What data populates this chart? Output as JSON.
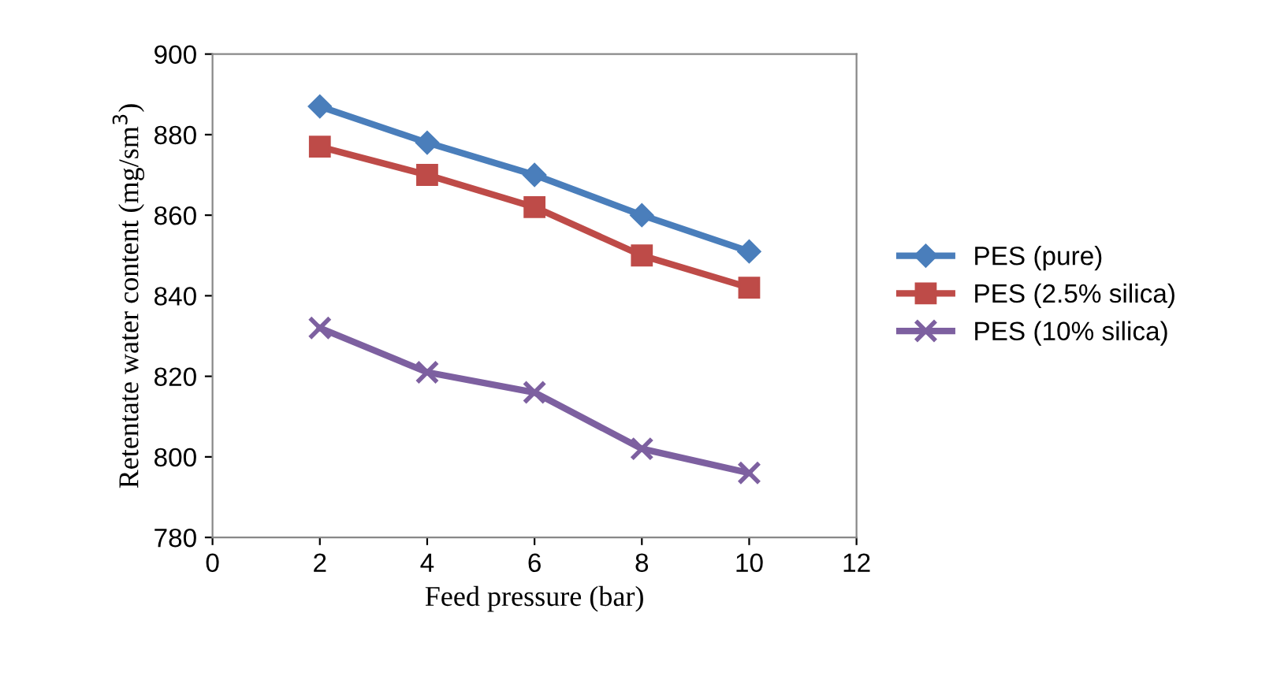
{
  "chart_data": {
    "type": "line",
    "xlabel": "Feed pressure (bar)",
    "ylabel": "Retentate water content (mg/sm$^{3}$)",
    "x": [
      2,
      4,
      6,
      8,
      10
    ],
    "series": [
      {
        "name": "PES (pure)",
        "color": "#4a7ebb",
        "marker": "diamond",
        "values": [
          887,
          878,
          870,
          860,
          851
        ]
      },
      {
        "name": "PES (2.5% silica)",
        "color": "#be4b48",
        "marker": "square",
        "values": [
          877,
          870,
          862,
          850,
          842
        ]
      },
      {
        "name": "PES (10% silica)",
        "color": "#7d60a0",
        "marker": "cross",
        "values": [
          832,
          821,
          816,
          802,
          796
        ]
      }
    ],
    "xlim": [
      0,
      12
    ],
    "xticks": [
      0,
      2,
      4,
      6,
      8,
      10,
      12
    ],
    "ylim": [
      780,
      900
    ],
    "yticks": [
      780,
      800,
      820,
      840,
      860,
      880,
      900
    ],
    "grid": false,
    "legend": "right",
    "line_style": "solid"
  }
}
